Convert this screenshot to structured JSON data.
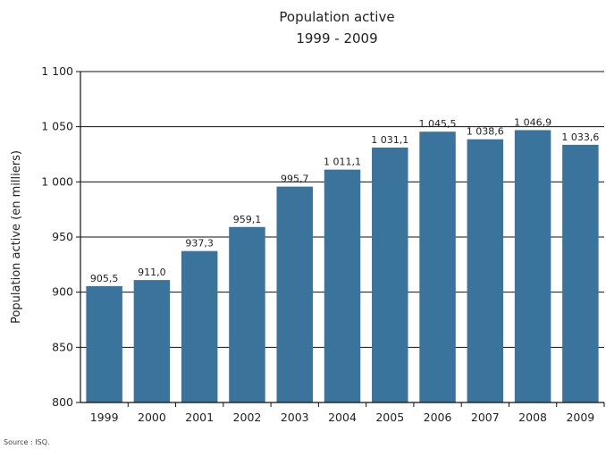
{
  "chart_data": {
    "type": "bar",
    "title": "Population active",
    "subtitle": "1999 - 2009",
    "xlabel": "",
    "ylabel": "Population active (en milliers)",
    "categories": [
      "1999",
      "2000",
      "2001",
      "2002",
      "2003",
      "2004",
      "2005",
      "2006",
      "2007",
      "2008",
      "2009"
    ],
    "values": [
      905.5,
      911.0,
      937.3,
      959.1,
      995.7,
      1011.1,
      1031.1,
      1045.5,
      1038.6,
      1046.9,
      1033.6
    ],
    "value_labels": [
      "905,5",
      "911,0",
      "937,3",
      "959,1",
      "995,7",
      "1 011,1",
      "1 031,1",
      "1 045,5",
      "1 038,6",
      "1 046,9",
      "1 033,6"
    ],
    "ylim": [
      800,
      1100
    ],
    "yticks": [
      800,
      850,
      900,
      950,
      1000,
      1050,
      1100
    ],
    "ytick_labels": [
      "800",
      "850",
      "900",
      "950",
      "1 000",
      "1 050",
      "1 100"
    ],
    "grid": true,
    "legend": "none",
    "bar_color": "#3a749c"
  },
  "source": "Source : ISQ."
}
